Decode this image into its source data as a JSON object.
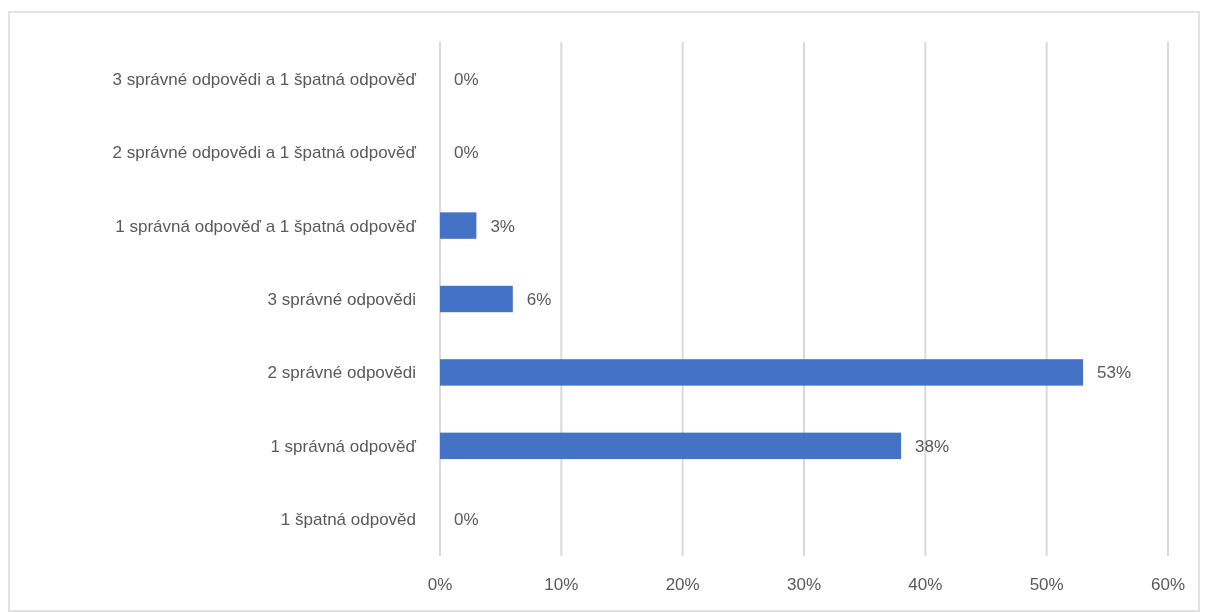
{
  "chart_data": {
    "type": "bar",
    "orientation": "horizontal",
    "categories": [
      "3 správné odpovědi a 1 špatná odpověď",
      "2 správné odpovědi a 1 špatná odpověď",
      "1 správná odpověď a 1 špatná odpověď",
      "3 správné odpovědi",
      "2 správné odpovědi",
      "1 správná odpověď",
      "1 špatná odpověd"
    ],
    "values": [
      0,
      0,
      3,
      6,
      53,
      38,
      0
    ],
    "value_labels": [
      "0%",
      "0%",
      "3%",
      "6%",
      "53%",
      "38%",
      "0%"
    ],
    "color": "#4472c4",
    "xlim": [
      0,
      60
    ],
    "xticks": [
      {
        "value": 0,
        "label": "0%"
      },
      {
        "value": 10,
        "label": "10%"
      },
      {
        "value": 20,
        "label": "20%"
      },
      {
        "value": 30,
        "label": "30%"
      },
      {
        "value": 40,
        "label": "40%"
      },
      {
        "value": 50,
        "label": "50%"
      },
      {
        "value": 60,
        "label": "60%"
      }
    ],
    "grid": "x"
  }
}
